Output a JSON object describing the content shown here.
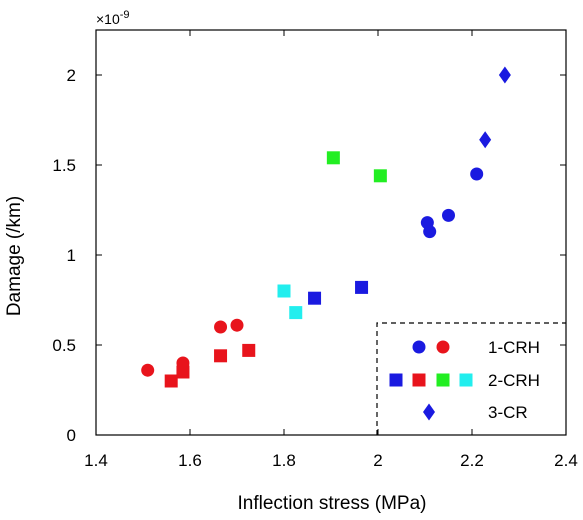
{
  "chart_data": {
    "type": "scatter",
    "xlabel": "Inflection stress (MPa)",
    "ylabel": "Damage (/km)",
    "y_multiplier_label": "×10",
    "y_multiplier_exponent": "-9",
    "xlim": [
      1.4,
      2.4
    ],
    "ylim": [
      0,
      2.25
    ],
    "x_ticks": [
      1.4,
      1.6,
      1.8,
      2.0,
      2.2,
      2.4
    ],
    "x_tick_labels": [
      "1.4",
      "1.6",
      "1.8",
      "2",
      "2.2",
      "2.4"
    ],
    "y_ticks": [
      0,
      0.5,
      1.0,
      1.5,
      2.0
    ],
    "y_tick_labels": [
      "0",
      "0.5",
      "1",
      "1.5",
      "2"
    ],
    "grid": false,
    "legend_position": "bottom-right",
    "series": [
      {
        "name": "1-CRH",
        "marker": "circle",
        "color": "#e8141c",
        "points": [
          [
            1.51,
            0.36
          ],
          [
            1.585,
            0.4
          ],
          [
            1.665,
            0.6
          ],
          [
            1.7,
            0.61
          ]
        ]
      },
      {
        "name": "1-CRH",
        "marker": "circle",
        "color": "#1a1ae0",
        "points": [
          [
            2.105,
            1.18
          ],
          [
            2.11,
            1.13
          ],
          [
            2.15,
            1.22
          ],
          [
            2.21,
            1.45
          ]
        ]
      },
      {
        "name": "2-CRH",
        "marker": "square",
        "color": "#e8141c",
        "points": [
          [
            1.56,
            0.3
          ],
          [
            1.585,
            0.35
          ],
          [
            1.665,
            0.44
          ],
          [
            1.725,
            0.47
          ]
        ]
      },
      {
        "name": "2-CRH",
        "marker": "square",
        "color": "#1a1ae0",
        "points": [
          [
            1.865,
            0.76
          ],
          [
            1.965,
            0.82
          ]
        ]
      },
      {
        "name": "2-CRH",
        "marker": "square",
        "color": "#22ee22",
        "points": [
          [
            1.905,
            1.54
          ],
          [
            2.005,
            1.44
          ]
        ]
      },
      {
        "name": "2-CRH",
        "marker": "square",
        "color": "#22eeee",
        "points": [
          [
            1.8,
            0.8
          ],
          [
            1.825,
            0.68
          ]
        ]
      },
      {
        "name": "3-CR",
        "marker": "diamond",
        "color": "#1a1ae0",
        "points": [
          [
            2.228,
            1.64
          ],
          [
            2.27,
            2.0
          ]
        ]
      }
    ],
    "legend": [
      {
        "label": "1-CRH",
        "markers": [
          {
            "shape": "circle",
            "color": "#1a1ae0"
          },
          {
            "shape": "circle",
            "color": "#e8141c"
          }
        ]
      },
      {
        "label": "2-CRH",
        "markers": [
          {
            "shape": "square",
            "color": "#1a1ae0"
          },
          {
            "shape": "square",
            "color": "#e8141c"
          },
          {
            "shape": "square",
            "color": "#22ee22"
          },
          {
            "shape": "square",
            "color": "#22eeee"
          }
        ]
      },
      {
        "label": "3-CR",
        "markers": [
          {
            "shape": "diamond",
            "color": "#1a1ae0"
          }
        ]
      }
    ]
  }
}
